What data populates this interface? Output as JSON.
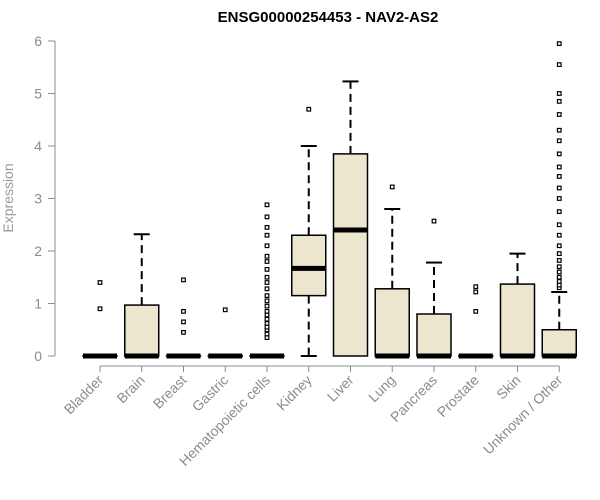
{
  "chart_data": {
    "type": "boxplot",
    "title": "ENSG00000254453 - NAV2-AS2",
    "xlabel": "",
    "ylabel": "Expression",
    "ylim": [
      0,
      6
    ],
    "yticks": [
      0,
      1,
      2,
      3,
      4,
      5,
      6
    ],
    "box_fill": "#ede6cf",
    "categories": [
      "Bladder",
      "Brain",
      "Breast",
      "Gastric",
      "Hematopoietic cells",
      "Kidney",
      "Liver",
      "Lung",
      "Pancreas",
      "Prostate",
      "Skin",
      "Unknown / Other"
    ],
    "boxes": [
      {
        "q1": 0,
        "median": 0,
        "q3": 0,
        "whisker_low": 0,
        "whisker_high": 0,
        "outliers": [
          0.9,
          1.4
        ]
      },
      {
        "q1": 0,
        "median": 0,
        "q3": 0.97,
        "whisker_low": 0,
        "whisker_high": 2.32,
        "outliers": []
      },
      {
        "q1": 0,
        "median": 0,
        "q3": 0,
        "whisker_low": 0,
        "whisker_high": 0,
        "outliers": [
          0.45,
          0.65,
          0.85,
          1.45
        ]
      },
      {
        "q1": 0,
        "median": 0,
        "q3": 0,
        "whisker_low": 0,
        "whisker_high": 0,
        "outliers": [
          0.88
        ]
      },
      {
        "q1": 0,
        "median": 0,
        "q3": 0,
        "whisker_low": 0,
        "whisker_high": 0,
        "outliers": [
          0.35,
          0.42,
          0.5,
          0.55,
          0.62,
          0.7,
          0.78,
          0.85,
          0.95,
          1.05,
          1.15,
          1.28,
          1.4,
          1.5,
          1.65,
          1.8,
          1.9,
          2.1,
          2.3,
          2.45,
          2.65,
          2.88
        ]
      },
      {
        "q1": 1.15,
        "median": 1.67,
        "q3": 2.3,
        "whisker_low": 0,
        "whisker_high": 4.0,
        "outliers": [
          4.7
        ]
      },
      {
        "q1": 0,
        "median": 2.4,
        "q3": 3.85,
        "whisker_low": 0,
        "whisker_high": 5.23,
        "outliers": []
      },
      {
        "q1": 0,
        "median": 0,
        "q3": 1.28,
        "whisker_low": 0,
        "whisker_high": 2.8,
        "outliers": [
          3.22
        ]
      },
      {
        "q1": 0,
        "median": 0,
        "q3": 0.8,
        "whisker_low": 0,
        "whisker_high": 1.78,
        "outliers": [
          2.57
        ]
      },
      {
        "q1": 0,
        "median": 0,
        "q3": 0,
        "whisker_low": 0,
        "whisker_high": 0,
        "outliers": [
          0.85,
          1.22,
          1.32
        ]
      },
      {
        "q1": 0,
        "median": 0,
        "q3": 1.37,
        "whisker_low": 0,
        "whisker_high": 1.95,
        "outliers": []
      },
      {
        "q1": 0,
        "median": 0,
        "q3": 0.5,
        "whisker_low": 0,
        "whisker_high": 1.22,
        "outliers": [
          1.3,
          1.35,
          1.42,
          1.5,
          1.6,
          1.7,
          1.82,
          1.95,
          2.1,
          2.3,
          2.5,
          2.75,
          3.0,
          3.2,
          3.42,
          3.6,
          3.85,
          4.1,
          4.3,
          4.6,
          4.85,
          5.0,
          5.55,
          5.95
        ]
      }
    ]
  }
}
